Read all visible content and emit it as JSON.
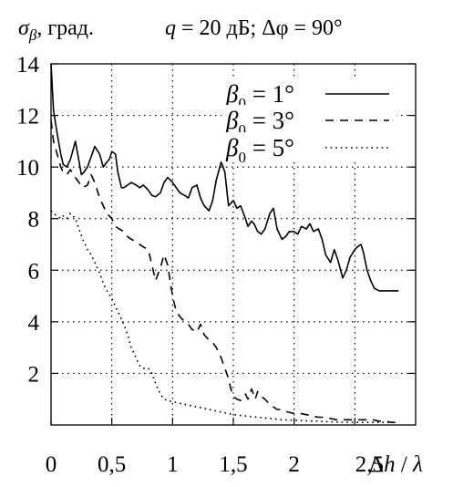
{
  "header": {
    "ylabel_symbol": "σ",
    "ylabel_subscript": "β",
    "ylabel_unit": ", град.",
    "condition_q": "q",
    "condition_q_value": " = 20 дБ; ",
    "condition_phi": "Δφ = 90°"
  },
  "axes": {
    "xlabel_prefix": "2,5 ",
    "xlabel": "Δh / λ"
  },
  "chart_data": {
    "type": "line",
    "title": "",
    "xlabel": "Δh / λ",
    "ylabel": "σβ, град.",
    "xlim": [
      0,
      3.0
    ],
    "ylim": [
      0,
      14
    ],
    "grid": "dotted",
    "legend_position": "top-right",
    "x_ticks": [
      {
        "value": 0,
        "label": "0"
      },
      {
        "value": 0.5,
        "label": "0,5"
      },
      {
        "value": 1,
        "label": "1"
      },
      {
        "value": 1.5,
        "label": "1,5"
      },
      {
        "value": 2,
        "label": "2"
      },
      {
        "value": 2.5,
        "label": "2,5"
      }
    ],
    "y_ticks": [
      {
        "value": 2,
        "label": "2"
      },
      {
        "value": 4,
        "label": "4"
      },
      {
        "value": 6,
        "label": "6"
      },
      {
        "value": 8,
        "label": "8"
      },
      {
        "value": 10,
        "label": "10"
      },
      {
        "value": 12,
        "label": "12"
      },
      {
        "value": 14,
        "label": "14"
      }
    ],
    "series": [
      {
        "name": "β0 = 1°",
        "legend_symbol": "β",
        "legend_sub": "0",
        "legend_value": " = 1°",
        "style": "solid",
        "x": [
          0,
          0.02,
          0.05,
          0.08,
          0.1,
          0.13,
          0.16,
          0.2,
          0.22,
          0.25,
          0.27,
          0.3,
          0.33,
          0.36,
          0.4,
          0.43,
          0.46,
          0.48,
          0.5,
          0.53,
          0.55,
          0.58,
          0.6,
          0.63,
          0.66,
          0.7,
          0.73,
          0.76,
          0.8,
          0.83,
          0.86,
          0.9,
          0.93,
          0.96,
          1.0,
          1.03,
          1.06,
          1.1,
          1.13,
          1.16,
          1.2,
          1.23,
          1.26,
          1.3,
          1.33,
          1.36,
          1.4,
          1.43,
          1.46,
          1.5,
          1.53,
          1.56,
          1.6,
          1.62,
          1.65,
          1.67,
          1.7,
          1.73,
          1.76,
          1.8,
          1.83,
          1.86,
          1.9,
          1.93,
          1.96,
          2.0,
          2.03,
          2.06,
          2.1,
          2.13,
          2.16,
          2.2,
          2.23,
          2.26,
          2.3,
          2.33,
          2.36,
          2.4,
          2.43,
          2.46,
          2.5,
          2.52,
          2.55,
          2.57,
          2.6,
          2.63,
          2.66,
          2.7,
          2.72,
          2.75,
          2.78,
          2.8,
          2.83,
          2.86
        ],
        "y": [
          14.0,
          12.2,
          11.3,
          10.5,
          10.1,
          10.0,
          10.3,
          11.0,
          10.5,
          9.7,
          9.8,
          10.0,
          10.4,
          10.8,
          10.5,
          10.0,
          10.2,
          10.3,
          10.6,
          10.5,
          9.8,
          9.2,
          9.2,
          9.3,
          9.4,
          9.3,
          9.2,
          9.3,
          9.1,
          8.9,
          8.85,
          9.0,
          9.4,
          9.6,
          9.4,
          9.2,
          9.0,
          8.9,
          8.8,
          9.2,
          9.3,
          8.8,
          8.5,
          8.3,
          8.7,
          9.5,
          10.2,
          9.8,
          8.5,
          8.7,
          8.4,
          8.5,
          8.0,
          7.7,
          7.9,
          7.8,
          7.5,
          7.4,
          7.6,
          8.2,
          8.4,
          7.6,
          7.2,
          7.3,
          7.5,
          7.5,
          7.4,
          7.7,
          7.6,
          7.8,
          7.5,
          7.6,
          7.2,
          6.6,
          6.3,
          6.8,
          6.4,
          5.7,
          6.0,
          6.5,
          6.8,
          6.9,
          7.0,
          6.7,
          6.0,
          5.6,
          5.3,
          5.2,
          5.2,
          5.2,
          5.2,
          5.2,
          5.2,
          5.2
        ]
      },
      {
        "name": "β0 = 3°",
        "legend_symbol": "β",
        "legend_sub": "0",
        "legend_value": " = 3°",
        "style": "dashed",
        "x": [
          0,
          0.02,
          0.05,
          0.08,
          0.1,
          0.13,
          0.16,
          0.2,
          0.23,
          0.26,
          0.3,
          0.33,
          0.36,
          0.4,
          0.43,
          0.46,
          0.5,
          0.53,
          0.56,
          0.6,
          0.63,
          0.66,
          0.7,
          0.73,
          0.76,
          0.8,
          0.83,
          0.86,
          0.9,
          0.93,
          0.96,
          1.0,
          1.03,
          1.06,
          1.1,
          1.13,
          1.16,
          1.2,
          1.23,
          1.26,
          1.3,
          1.33,
          1.36,
          1.4,
          1.43,
          1.46,
          1.48,
          1.5,
          1.53,
          1.56,
          1.6,
          1.62,
          1.65,
          1.68,
          1.7,
          1.73,
          1.76,
          1.8,
          1.83,
          1.86,
          1.9,
          1.95,
          2.0,
          2.05,
          2.1,
          2.15,
          2.2,
          2.25,
          2.3,
          2.35,
          2.4,
          2.45,
          2.5,
          2.55,
          2.6,
          2.65,
          2.7,
          2.75,
          2.8,
          2.85
        ],
        "y": [
          11.8,
          11.0,
          10.5,
          10.0,
          9.8,
          9.7,
          9.9,
          9.6,
          9.4,
          9.2,
          9.3,
          9.7,
          9.4,
          8.8,
          8.5,
          8.2,
          8.0,
          7.7,
          7.6,
          7.5,
          7.3,
          7.2,
          7.1,
          7.0,
          6.9,
          6.8,
          6.2,
          5.6,
          6.1,
          6.6,
          6.2,
          5.0,
          4.4,
          4.2,
          4.0,
          3.9,
          3.7,
          3.6,
          3.9,
          3.5,
          3.3,
          3.2,
          3.0,
          2.6,
          2.2,
          1.8,
          1.4,
          1.1,
          1.0,
          0.95,
          1.2,
          1.0,
          1.4,
          1.0,
          1.3,
          1.1,
          1.0,
          0.8,
          0.7,
          0.6,
          0.6,
          0.5,
          0.45,
          0.45,
          0.4,
          0.35,
          0.3,
          0.3,
          0.25,
          0.2,
          0.2,
          0.2,
          0.2,
          0.2,
          0.2,
          0.2,
          0.15,
          0.15,
          0.1,
          0.1
        ]
      },
      {
        "name": "β0 = 5°",
        "legend_symbol": "β",
        "legend_sub": "0",
        "legend_value": " = 5°",
        "style": "dotted",
        "x": [
          0,
          0.02,
          0.05,
          0.08,
          0.1,
          0.13,
          0.16,
          0.2,
          0.23,
          0.26,
          0.3,
          0.33,
          0.36,
          0.4,
          0.43,
          0.46,
          0.5,
          0.53,
          0.56,
          0.6,
          0.63,
          0.66,
          0.7,
          0.73,
          0.76,
          0.8,
          0.83,
          0.86,
          0.9,
          0.93,
          0.96,
          1.0,
          1.05,
          1.1,
          1.15,
          1.2,
          1.25,
          1.3,
          1.35,
          1.4,
          1.45,
          1.5,
          1.6,
          1.7,
          1.8,
          1.9,
          2.0,
          2.1,
          2.2,
          2.3,
          2.4,
          2.5,
          2.6,
          2.7,
          2.8,
          2.85
        ],
        "y": [
          8.3,
          8.2,
          8.1,
          8.0,
          8.1,
          8.0,
          8.2,
          8.0,
          7.6,
          7.2,
          6.8,
          6.6,
          6.3,
          5.9,
          5.5,
          5.2,
          4.9,
          4.6,
          4.3,
          3.9,
          3.5,
          3.0,
          2.6,
          2.3,
          2.2,
          2.2,
          2.0,
          1.6,
          1.2,
          1.0,
          0.95,
          0.9,
          0.85,
          0.8,
          0.75,
          0.7,
          0.65,
          0.6,
          0.55,
          0.5,
          0.45,
          0.4,
          0.35,
          0.3,
          0.25,
          0.2,
          0.18,
          0.16,
          0.14,
          0.12,
          0.11,
          0.1,
          0.1,
          0.1,
          0.1,
          0.1
        ]
      }
    ]
  }
}
